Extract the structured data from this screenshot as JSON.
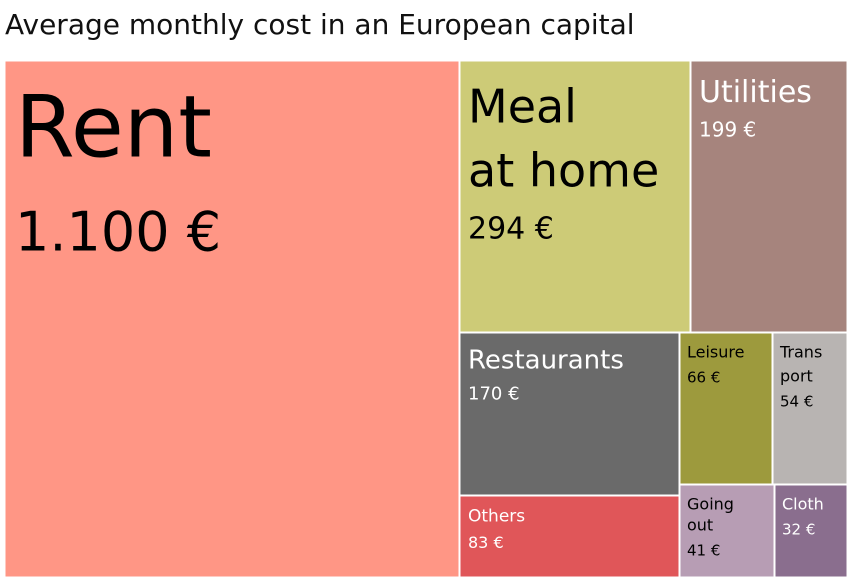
{
  "title": "Average monthly cost in an European capital",
  "chart_data": {
    "type": "treemap",
    "title": "Average monthly cost in an European capital",
    "currency": "€",
    "items": [
      {
        "name": "Rent",
        "label_lines": [
          "Rent"
        ],
        "value": 1100,
        "value_label": "1.100 €",
        "color": "#FF9685",
        "text_color": "#000000"
      },
      {
        "name": "Meal at home",
        "label_lines": [
          "Meal",
          "at home"
        ],
        "value": 294,
        "value_label": "294 €",
        "color": "#CDCB77",
        "text_color": "#000000"
      },
      {
        "name": "Utilities",
        "label_lines": [
          "Utilities"
        ],
        "value": 199,
        "value_label": "199 €",
        "color": "#A6847D",
        "text_color": "#FFFFFF"
      },
      {
        "name": "Restaurants",
        "label_lines": [
          "Restaurants"
        ],
        "value": 170,
        "value_label": "170 €",
        "color": "#6A6A6A",
        "text_color": "#FFFFFF"
      },
      {
        "name": "Others",
        "label_lines": [
          "Others"
        ],
        "value": 83,
        "value_label": "83 €",
        "color": "#E05659",
        "text_color": "#FFFFFF"
      },
      {
        "name": "Leisure",
        "label_lines": [
          "Leisure"
        ],
        "value": 66,
        "value_label": "66 €",
        "color": "#9D9A3D",
        "text_color": "#000000"
      },
      {
        "name": "Transport",
        "label_lines": [
          "Trans",
          "port"
        ],
        "value": 54,
        "value_label": "54 €",
        "color": "#B8B4B2",
        "text_color": "#000000"
      },
      {
        "name": "Going out",
        "label_lines": [
          "Going",
          "out"
        ],
        "value": 41,
        "value_label": "41 €",
        "color": "#B79DB4",
        "text_color": "#000000"
      },
      {
        "name": "Cloth",
        "label_lines": [
          "Cloth"
        ],
        "value": 32,
        "value_label": "32 €",
        "color": "#8A6E8E",
        "text_color": "#FFFFFF"
      }
    ]
  }
}
